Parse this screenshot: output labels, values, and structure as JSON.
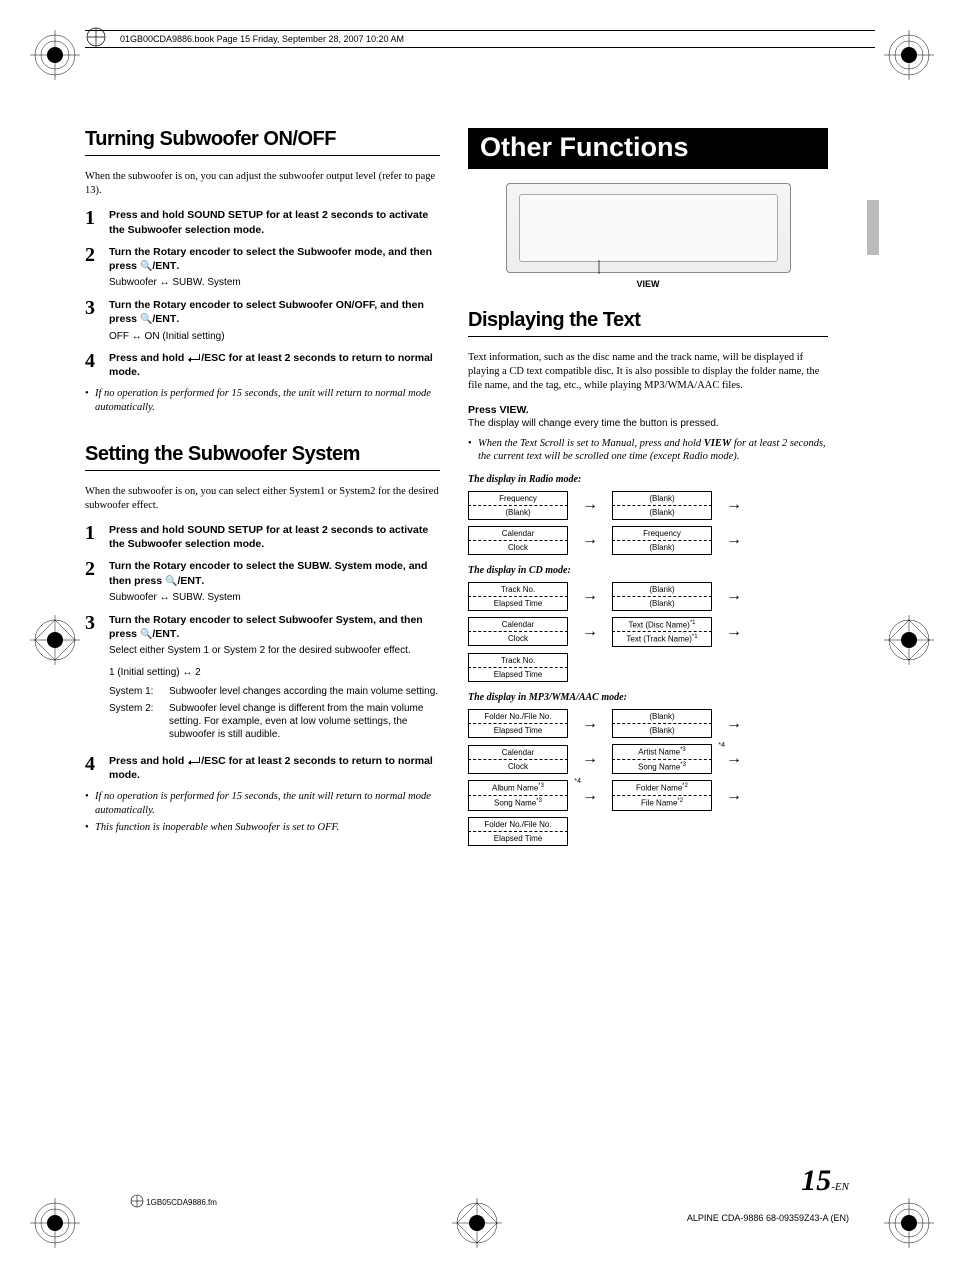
{
  "cropHeader": "01GB00CDA9886.book  Page 15  Friday, September 28, 2007  10:20 AM",
  "left": {
    "section1": {
      "title": "Turning Subwoofer ON/OFF",
      "intro": "When the subwoofer is on, you can adjust the subwoofer output level (refer to page 13).",
      "steps": [
        {
          "num": "1",
          "bold": "Press and hold SOUND SETUP for at least 2 seconds to activate the Subwoofer selection mode."
        },
        {
          "num": "2",
          "bold": "Turn the Rotary encoder to select the Subwoofer mode, and then press 🔍/ENT.",
          "sub": "Subwoofer ↔ SUBW. System"
        },
        {
          "num": "3",
          "bold": "Turn the Rotary encoder to select Subwoofer ON/OFF, and then press 🔍/ENT.",
          "sub": "OFF ↔ ON (Initial setting)"
        },
        {
          "num": "4",
          "bold": "Press and hold ⤴/ESC for at least 2 seconds to return to normal mode."
        }
      ],
      "note": "If no operation is performed for 15 seconds, the unit will return to normal mode automatically."
    },
    "section2": {
      "title": "Setting the Subwoofer System",
      "intro": "When the subwoofer is on, you can select either System1 or System2 for the desired subwoofer effect.",
      "steps": [
        {
          "num": "1",
          "bold": "Press and hold SOUND SETUP for at least 2 seconds to activate the Subwoofer selection mode."
        },
        {
          "num": "2",
          "bold": "Turn the Rotary encoder to select the SUBW. System mode, and then press 🔍/ENT.",
          "sub": "Subwoofer ↔ SUBW. System"
        },
        {
          "num": "3",
          "bold": "Turn the Rotary encoder to select Subwoofer System, and then press 🔍/ENT.",
          "subPlain": "Select either System 1 or System 2 for the desired subwoofer effect.",
          "sub2": "1 (Initial setting) ↔ 2"
        },
        {
          "num": "4",
          "bold": "Press and hold ⤴/ESC for at least 2 seconds to return to normal mode."
        }
      ],
      "systems": [
        {
          "label": "System 1:",
          "desc": "Subwoofer level changes according the main volume setting."
        },
        {
          "label": "System 2:",
          "desc": "Subwoofer level change is different from the main volume setting. For example, even at low volume settings, the subwoofer is still audible."
        }
      ],
      "notes": [
        "If no operation is performed for 15 seconds, the unit will return to normal mode automatically.",
        "This function is inoperable when Subwoofer is set to OFF."
      ]
    }
  },
  "right": {
    "mainTitle": "Other Functions",
    "viewLabel": "VIEW",
    "section1": {
      "title": "Displaying the Text",
      "intro": "Text information, such as the disc name and the track name, will be displayed if playing a CD text compatible disc. It is also possible to display the folder name, the file name, and the tag, etc., while playing MP3/WMA/AAC files.",
      "press": "Press VIEW.",
      "pressSub": "The display will change every time the button is pressed.",
      "note": "When the Text Scroll is set to Manual, press and hold VIEW for at least 2 seconds, the current text will be scrolled one time (except Radio mode)."
    },
    "modes": {
      "radio": {
        "title": "The display in Radio mode:",
        "rows": [
          [
            {
              "t": "Frequency",
              "b": "(Blank)"
            },
            {
              "t": "(Blank)",
              "b": "(Blank)"
            }
          ],
          [
            {
              "t": "Calendar",
              "b": "Clock"
            },
            {
              "t": "Frequency",
              "b": "(Blank)"
            }
          ]
        ]
      },
      "cd": {
        "title": "The display in CD mode:",
        "rows": [
          [
            {
              "t": "Track No.",
              "b": "Elapsed Time"
            },
            {
              "t": "(Blank)",
              "b": "(Blank)"
            }
          ],
          [
            {
              "t": "Calendar",
              "b": "Clock"
            },
            {
              "t": "Text (Disc Name)",
              "b": "Text (Track Name)",
              "sup": "*1"
            }
          ],
          [
            {
              "t": "Track No.",
              "b": "Elapsed Time"
            }
          ]
        ]
      },
      "mp3": {
        "title": "The display in MP3/WMA/AAC mode:",
        "rows": [
          [
            {
              "t": "Folder No./File No.",
              "b": "Elapsed Time"
            },
            {
              "t": "(Blank)",
              "b": "(Blank)"
            }
          ],
          [
            {
              "t": "Calendar",
              "b": "Clock"
            },
            {
              "t": "Artist Name",
              "b": "Song Name",
              "sup": "*3",
              "star": "*4"
            }
          ],
          [
            {
              "t": "Album Name",
              "b": "Song Name",
              "sup": "*3",
              "star": "*4"
            },
            {
              "t": "Folder Name",
              "b": "File Name",
              "sup": "*2"
            }
          ],
          [
            {
              "t": "Folder No./File No.",
              "b": "Elapsed Time"
            }
          ]
        ]
      }
    }
  },
  "pageNum": "15",
  "pageNumSuffix": "-EN",
  "footerLeft": "1GB05CDA9886.fm",
  "footerRight": "ALPINE CDA-9886 68-09359Z43-A (EN)",
  "colors": {
    "black": "#000000",
    "white": "#ffffff",
    "gray": "#bbbbbb"
  }
}
